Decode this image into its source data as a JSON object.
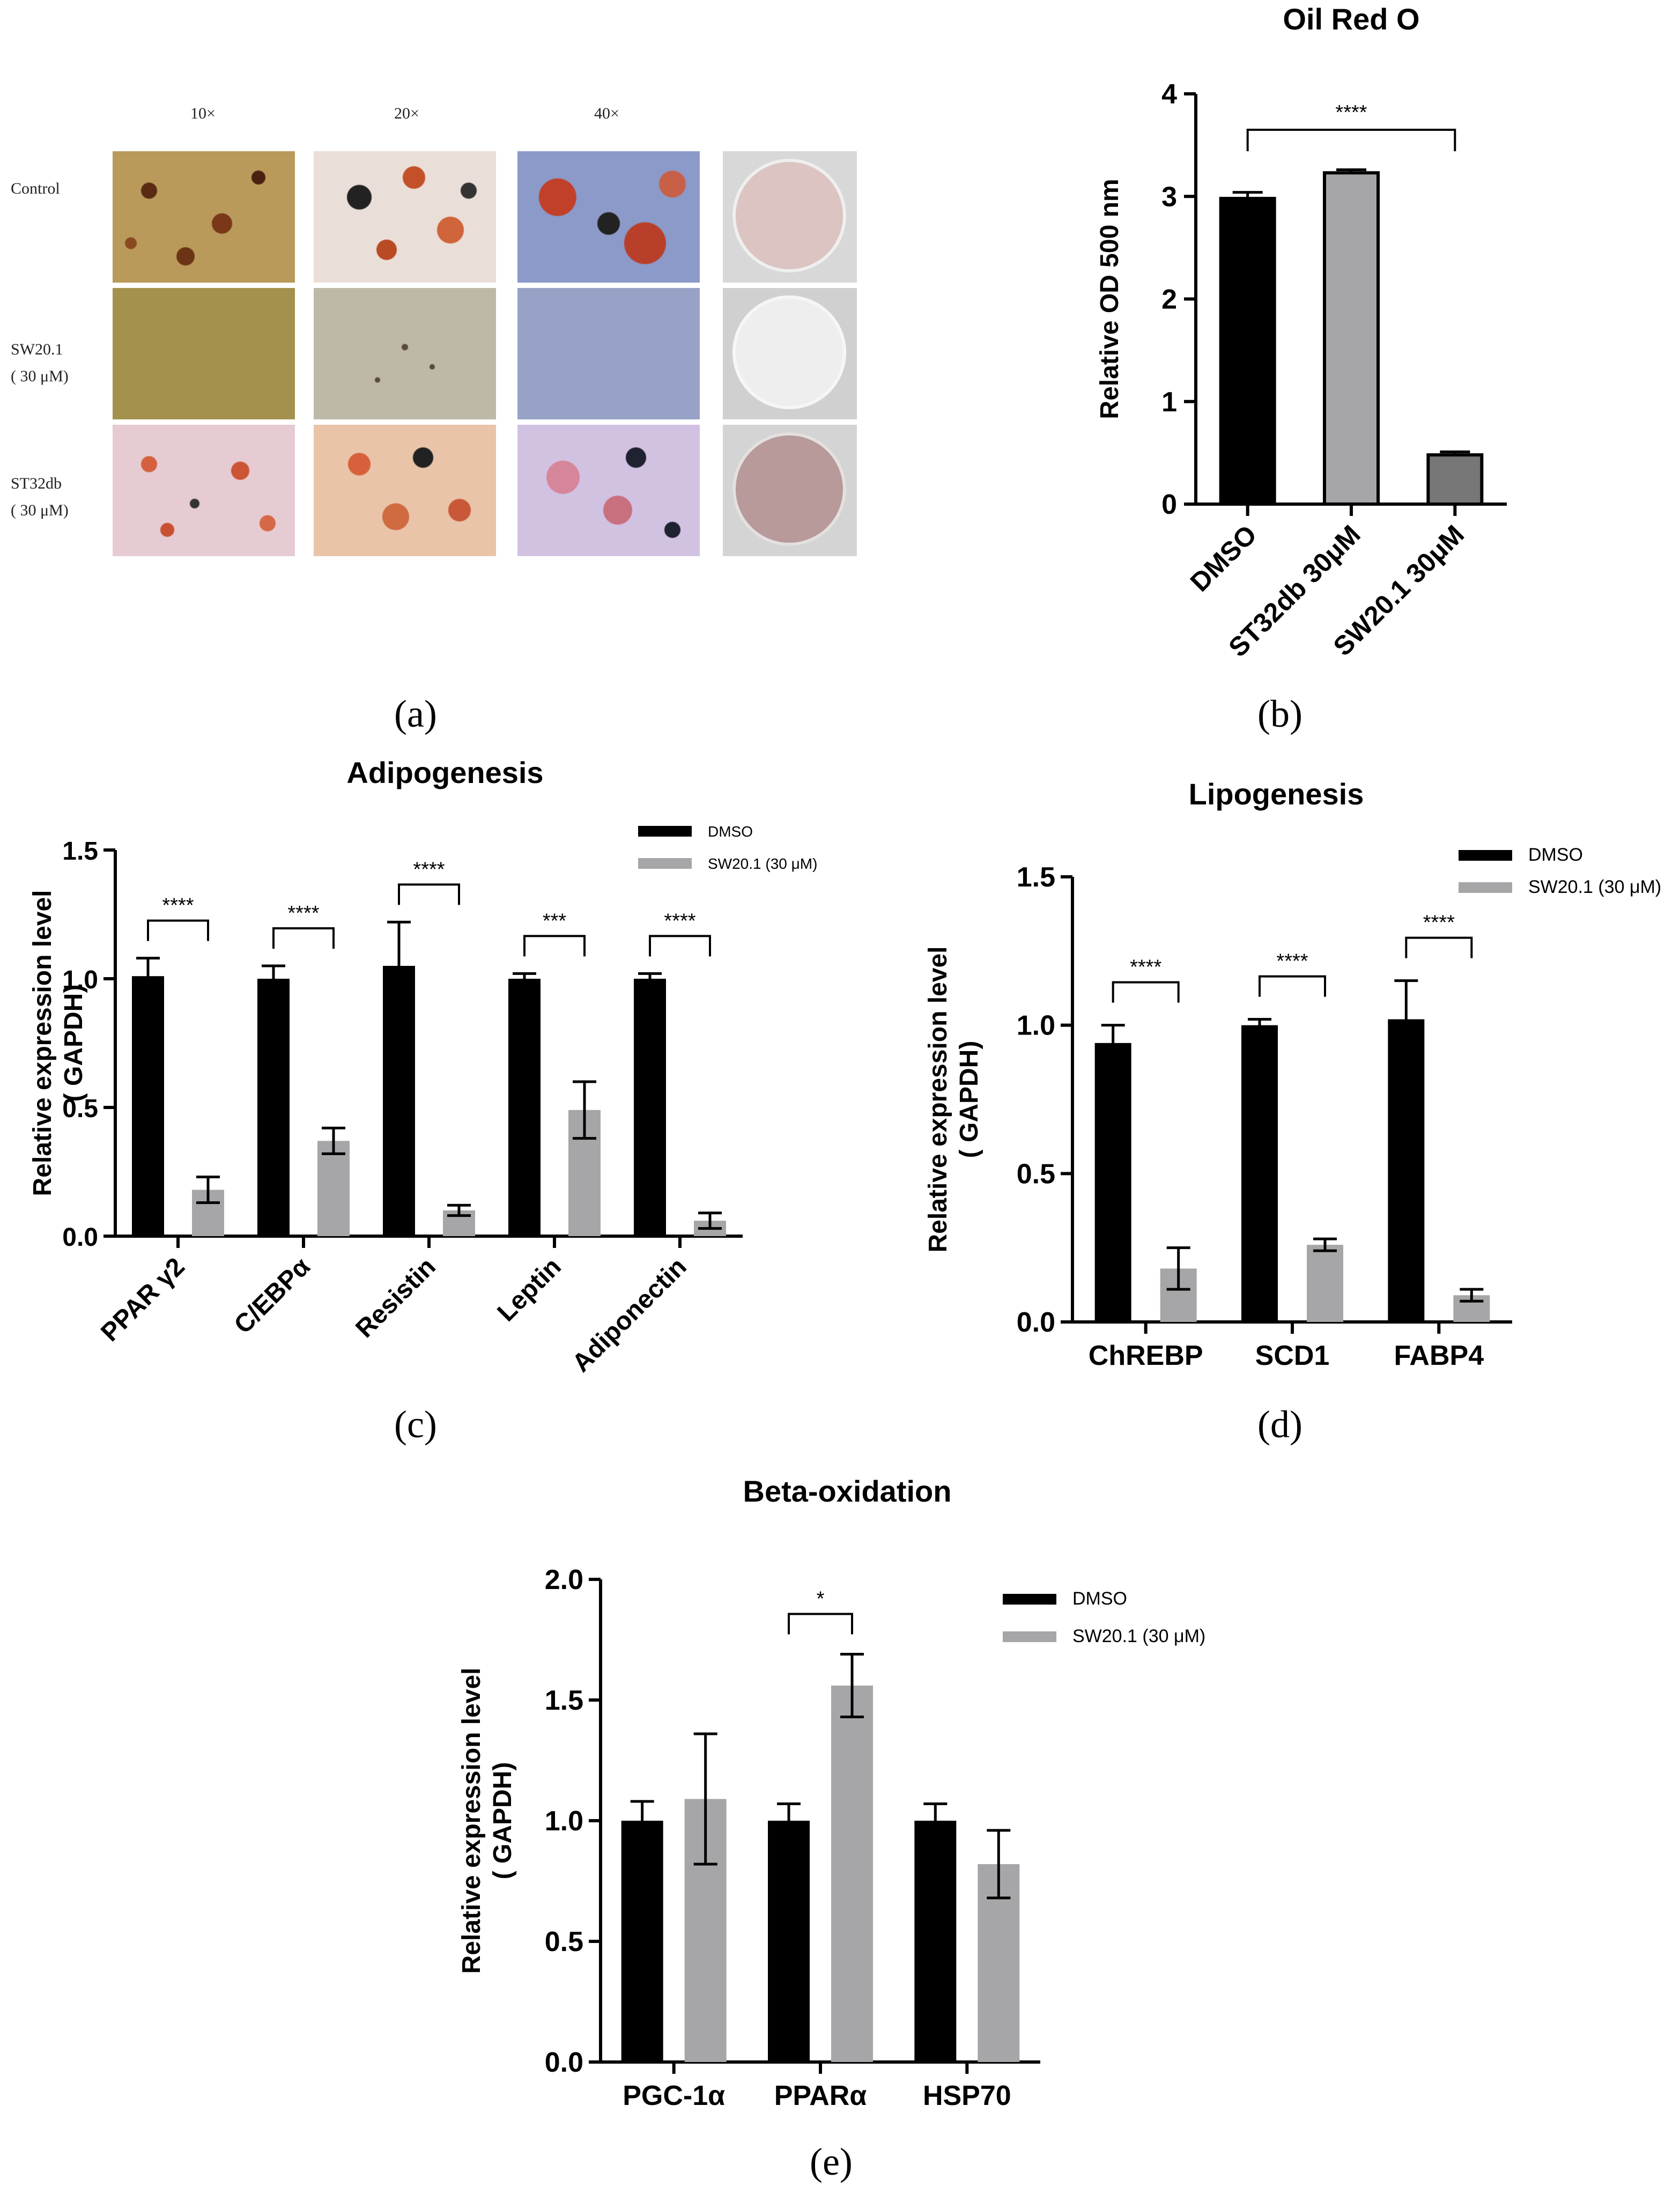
{
  "panel_a": {
    "magnifications": [
      "10×",
      "20×",
      "40×"
    ],
    "rows": [
      {
        "label": "Control",
        "sublabel": ""
      },
      {
        "label": "SW20.1",
        "sublabel": "( 30 μM)"
      },
      {
        "label": "ST32db",
        "sublabel": "( 30 μM)"
      }
    ],
    "caption": "(a)"
  },
  "panel_b": {
    "caption": "(b)"
  },
  "panel_c": {
    "caption": "(c)"
  },
  "panel_d": {
    "caption": "(d)"
  },
  "panel_e": {
    "caption": "(e)"
  },
  "chart_data": [
    {
      "id": "b",
      "type": "bar",
      "title": "Oil Red O",
      "ylabel": "Relative OD 500 nm",
      "ylim": [
        0,
        4
      ],
      "yticks": [
        "0",
        "1",
        "2",
        "3",
        "4"
      ],
      "categories": [
        "DMSO",
        "ST32db 30μM",
        "SW20.1 30μM"
      ],
      "values": [
        2.98,
        3.23,
        0.48
      ],
      "errors": [
        0.06,
        0.03,
        0.03
      ],
      "colors": [
        "#000000",
        "#a6a6a8",
        "#777777"
      ],
      "significance": [
        {
          "from": 0,
          "to": 2,
          "label": "****"
        }
      ]
    },
    {
      "id": "c",
      "type": "bar",
      "title": "Adipogenesis",
      "ylabel": [
        "Relative expression level",
        "( GAPDH)"
      ],
      "ylim": [
        0,
        1.5
      ],
      "yticks": [
        "0.0",
        "0.5",
        "1.0",
        "1.5"
      ],
      "categories": [
        "PPAR γ2",
        "C/EBPα",
        "Resistin",
        "Leptin",
        "Adiponectin"
      ],
      "series": [
        {
          "name": "DMSO",
          "color": "#000000",
          "values": [
            1.01,
            1.0,
            1.05,
            1.0,
            1.0
          ],
          "errors": [
            0.07,
            0.05,
            0.17,
            0.02,
            0.02
          ]
        },
        {
          "name": "SW20.1 (30 μM)",
          "color": "#a6a6a8",
          "values": [
            0.18,
            0.37,
            0.1,
            0.49,
            0.06
          ],
          "errors": [
            0.05,
            0.05,
            0.02,
            0.11,
            0.03
          ]
        }
      ],
      "significance": [
        "****",
        "****",
        "****",
        "***",
        "****"
      ],
      "legend": "top-right"
    },
    {
      "id": "d",
      "type": "bar",
      "title": "Lipogenesis",
      "ylabel": [
        "Relative expression level",
        "( GAPDH)"
      ],
      "ylim": [
        0,
        1.5
      ],
      "yticks": [
        "0.0",
        "0.5",
        "1.0",
        "1.5"
      ],
      "categories": [
        "ChREBP",
        "SCD1",
        "FABP4"
      ],
      "series": [
        {
          "name": "DMSO",
          "color": "#000000",
          "values": [
            0.94,
            1.0,
            1.02
          ],
          "errors": [
            0.06,
            0.02,
            0.13
          ]
        },
        {
          "name": "SW20.1 (30 μM)",
          "color": "#a6a6a8",
          "values": [
            0.18,
            0.26,
            0.09
          ],
          "errors": [
            0.07,
            0.02,
            0.02
          ]
        }
      ],
      "significance": [
        "****",
        "****",
        "****"
      ],
      "legend": "top-right"
    },
    {
      "id": "e",
      "type": "bar",
      "title": "Beta-oxidation",
      "ylabel": [
        "Relative expression level",
        "( GAPDH)"
      ],
      "ylim": [
        0,
        2.0
      ],
      "yticks": [
        "0.0",
        "0.5",
        "1.0",
        "1.5",
        "2.0"
      ],
      "categories": [
        "PGC-1α",
        "PPARα",
        "HSP70"
      ],
      "series": [
        {
          "name": "DMSO",
          "color": "#000000",
          "values": [
            1.0,
            1.0,
            1.0
          ],
          "errors": [
            0.08,
            0.07,
            0.07
          ]
        },
        {
          "name": "SW20.1 (30 μM)",
          "color": "#a6a6a8",
          "values": [
            1.09,
            1.56,
            0.82
          ],
          "errors": [
            0.27,
            0.13,
            0.14
          ]
        }
      ],
      "significance": [
        "",
        "*",
        ""
      ],
      "legend": "top-right"
    }
  ]
}
